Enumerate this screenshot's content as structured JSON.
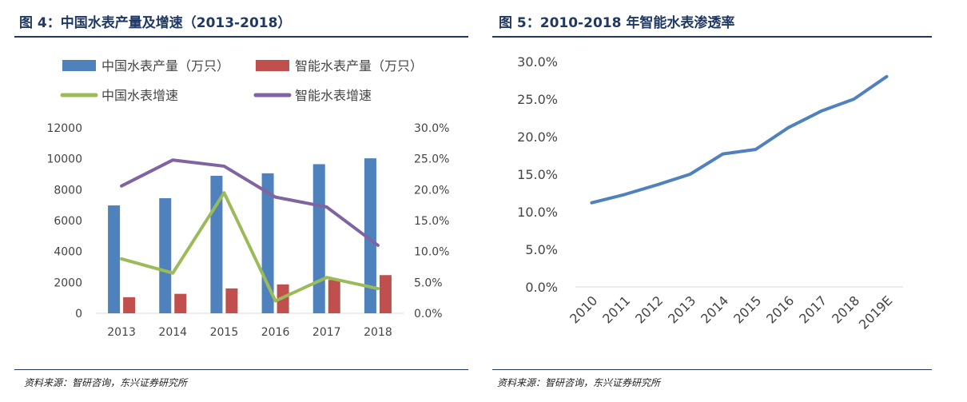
{
  "left": {
    "title": "图 4：中国水表产量及增速（2013-2018）",
    "source": "资料来源：智研咨询，东兴证券研究所"
  },
  "right": {
    "title": "图 5：2010-2018 年智能水表渗透率",
    "source": "资料来源：智研咨询，东兴证券研究所"
  },
  "colors": {
    "blue": "#4f81bd",
    "red": "#c0504d",
    "green": "#9bbb59",
    "purple": "#8064a2",
    "line": "#4f81bd",
    "title": "#1f3864"
  },
  "chart_data": [
    {
      "type": "bar",
      "title": "图 4：中国水表产量及增速（2013-2018）",
      "categories": [
        "2013",
        "2014",
        "2015",
        "2016",
        "2017",
        "2018"
      ],
      "series": [
        {
          "name": "中国水表产量（万只）",
          "kind": "bar",
          "axis": "left",
          "values": [
            6980,
            7450,
            8900,
            9060,
            9650,
            10030
          ]
        },
        {
          "name": "智能水表产量（万只）",
          "kind": "bar",
          "axis": "left",
          "values": [
            1040,
            1260,
            1610,
            1870,
            2160,
            2470
          ]
        },
        {
          "name": "中国水表增速",
          "kind": "line",
          "axis": "right",
          "values": [
            0.088,
            0.065,
            0.195,
            0.02,
            0.058,
            0.04
          ]
        },
        {
          "name": "智能水表增速",
          "kind": "line",
          "axis": "right",
          "values": [
            0.206,
            0.248,
            0.238,
            0.188,
            0.172,
            0.11
          ]
        }
      ],
      "yleft": {
        "min": 0,
        "max": 12000,
        "ticks": [
          "0",
          "2000",
          "4000",
          "6000",
          "8000",
          "10000",
          "12000"
        ]
      },
      "yright": {
        "min": 0,
        "max": 0.3,
        "ticks": [
          "0.0%",
          "5.0%",
          "10.0%",
          "15.0%",
          "20.0%",
          "25.0%",
          "30.0%"
        ]
      },
      "legend": "top"
    },
    {
      "type": "line",
      "title": "图 5：2010-2018 年智能水表渗透率",
      "categories": [
        "2010",
        "2011",
        "2012",
        "2013",
        "2014",
        "2015",
        "2016",
        "2017",
        "2018",
        "2019E"
      ],
      "series": [
        {
          "name": "智能水表渗透率",
          "values": [
            0.112,
            0.123,
            0.136,
            0.15,
            0.177,
            0.183,
            0.212,
            0.234,
            0.25,
            0.28
          ]
        }
      ],
      "ylim": [
        0,
        0.3
      ],
      "yticks": [
        "0.0%",
        "5.0%",
        "10.0%",
        "15.0%",
        "20.0%",
        "25.0%",
        "30.0%"
      ]
    }
  ]
}
